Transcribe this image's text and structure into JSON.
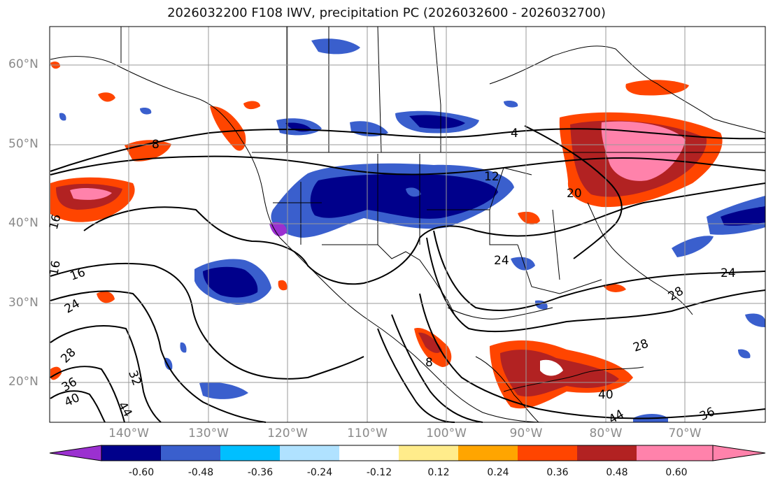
{
  "title": "2026032200 F108 IWV, precipitation PC (2026032600 - 2026032700)",
  "map": {
    "lat_labels": [
      "60°N",
      "50°N",
      "40°N",
      "30°N",
      "20°N"
    ],
    "lon_labels": [
      "140°W",
      "130°W",
      "120°W",
      "110°W",
      "100°W",
      "90°W",
      "80°W",
      "70°W"
    ],
    "contour_labels": [
      "4",
      "8",
      "12",
      "16",
      "16",
      "16",
      "20",
      "24",
      "24",
      "24",
      "28",
      "28",
      "28",
      "32",
      "36",
      "36",
      "40",
      "40",
      "44",
      "44",
      "8"
    ]
  },
  "colorbar": {
    "labels": [
      "-0.60",
      "-0.48",
      "-0.36",
      "-0.24",
      "-0.12",
      "0.12",
      "0.24",
      "0.36",
      "0.48",
      "0.60"
    ],
    "colors": [
      "#9b30d0",
      "#00008b",
      "#3a5fcd",
      "#00bfff",
      "#b0e2ff",
      "#ffffff",
      "#ffec8b",
      "#ffa500",
      "#ff4500",
      "#b22222",
      "#ff82ab"
    ]
  }
}
